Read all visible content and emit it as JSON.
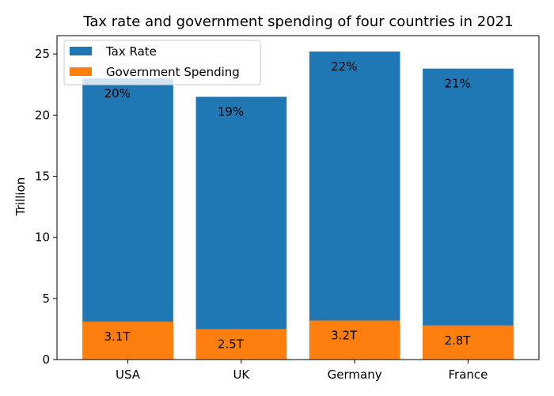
{
  "chart_data": {
    "type": "bar",
    "title": "Tax rate and government spending of four countries in 2021",
    "xlabel": "",
    "ylabel": "Trillion",
    "categories": [
      "USA",
      "UK",
      "Germany",
      "France"
    ],
    "series": [
      {
        "name": "Tax Rate",
        "values": [
          23.0,
          21.5,
          25.2,
          23.8
        ],
        "labels": [
          "20%",
          "19%",
          "22%",
          "21%"
        ],
        "color": "#1f77b4"
      },
      {
        "name": "Government Spending",
        "values": [
          3.1,
          2.5,
          3.2,
          2.8
        ],
        "labels": [
          "3.1T",
          "2.5T",
          "3.2T",
          "2.8T"
        ],
        "color": "#ff7f0e"
      }
    ],
    "ylim": [
      0,
      26.5
    ],
    "yticks": [
      0,
      5,
      10,
      15,
      20,
      25
    ],
    "grid": false,
    "legend_position": "top-left"
  }
}
